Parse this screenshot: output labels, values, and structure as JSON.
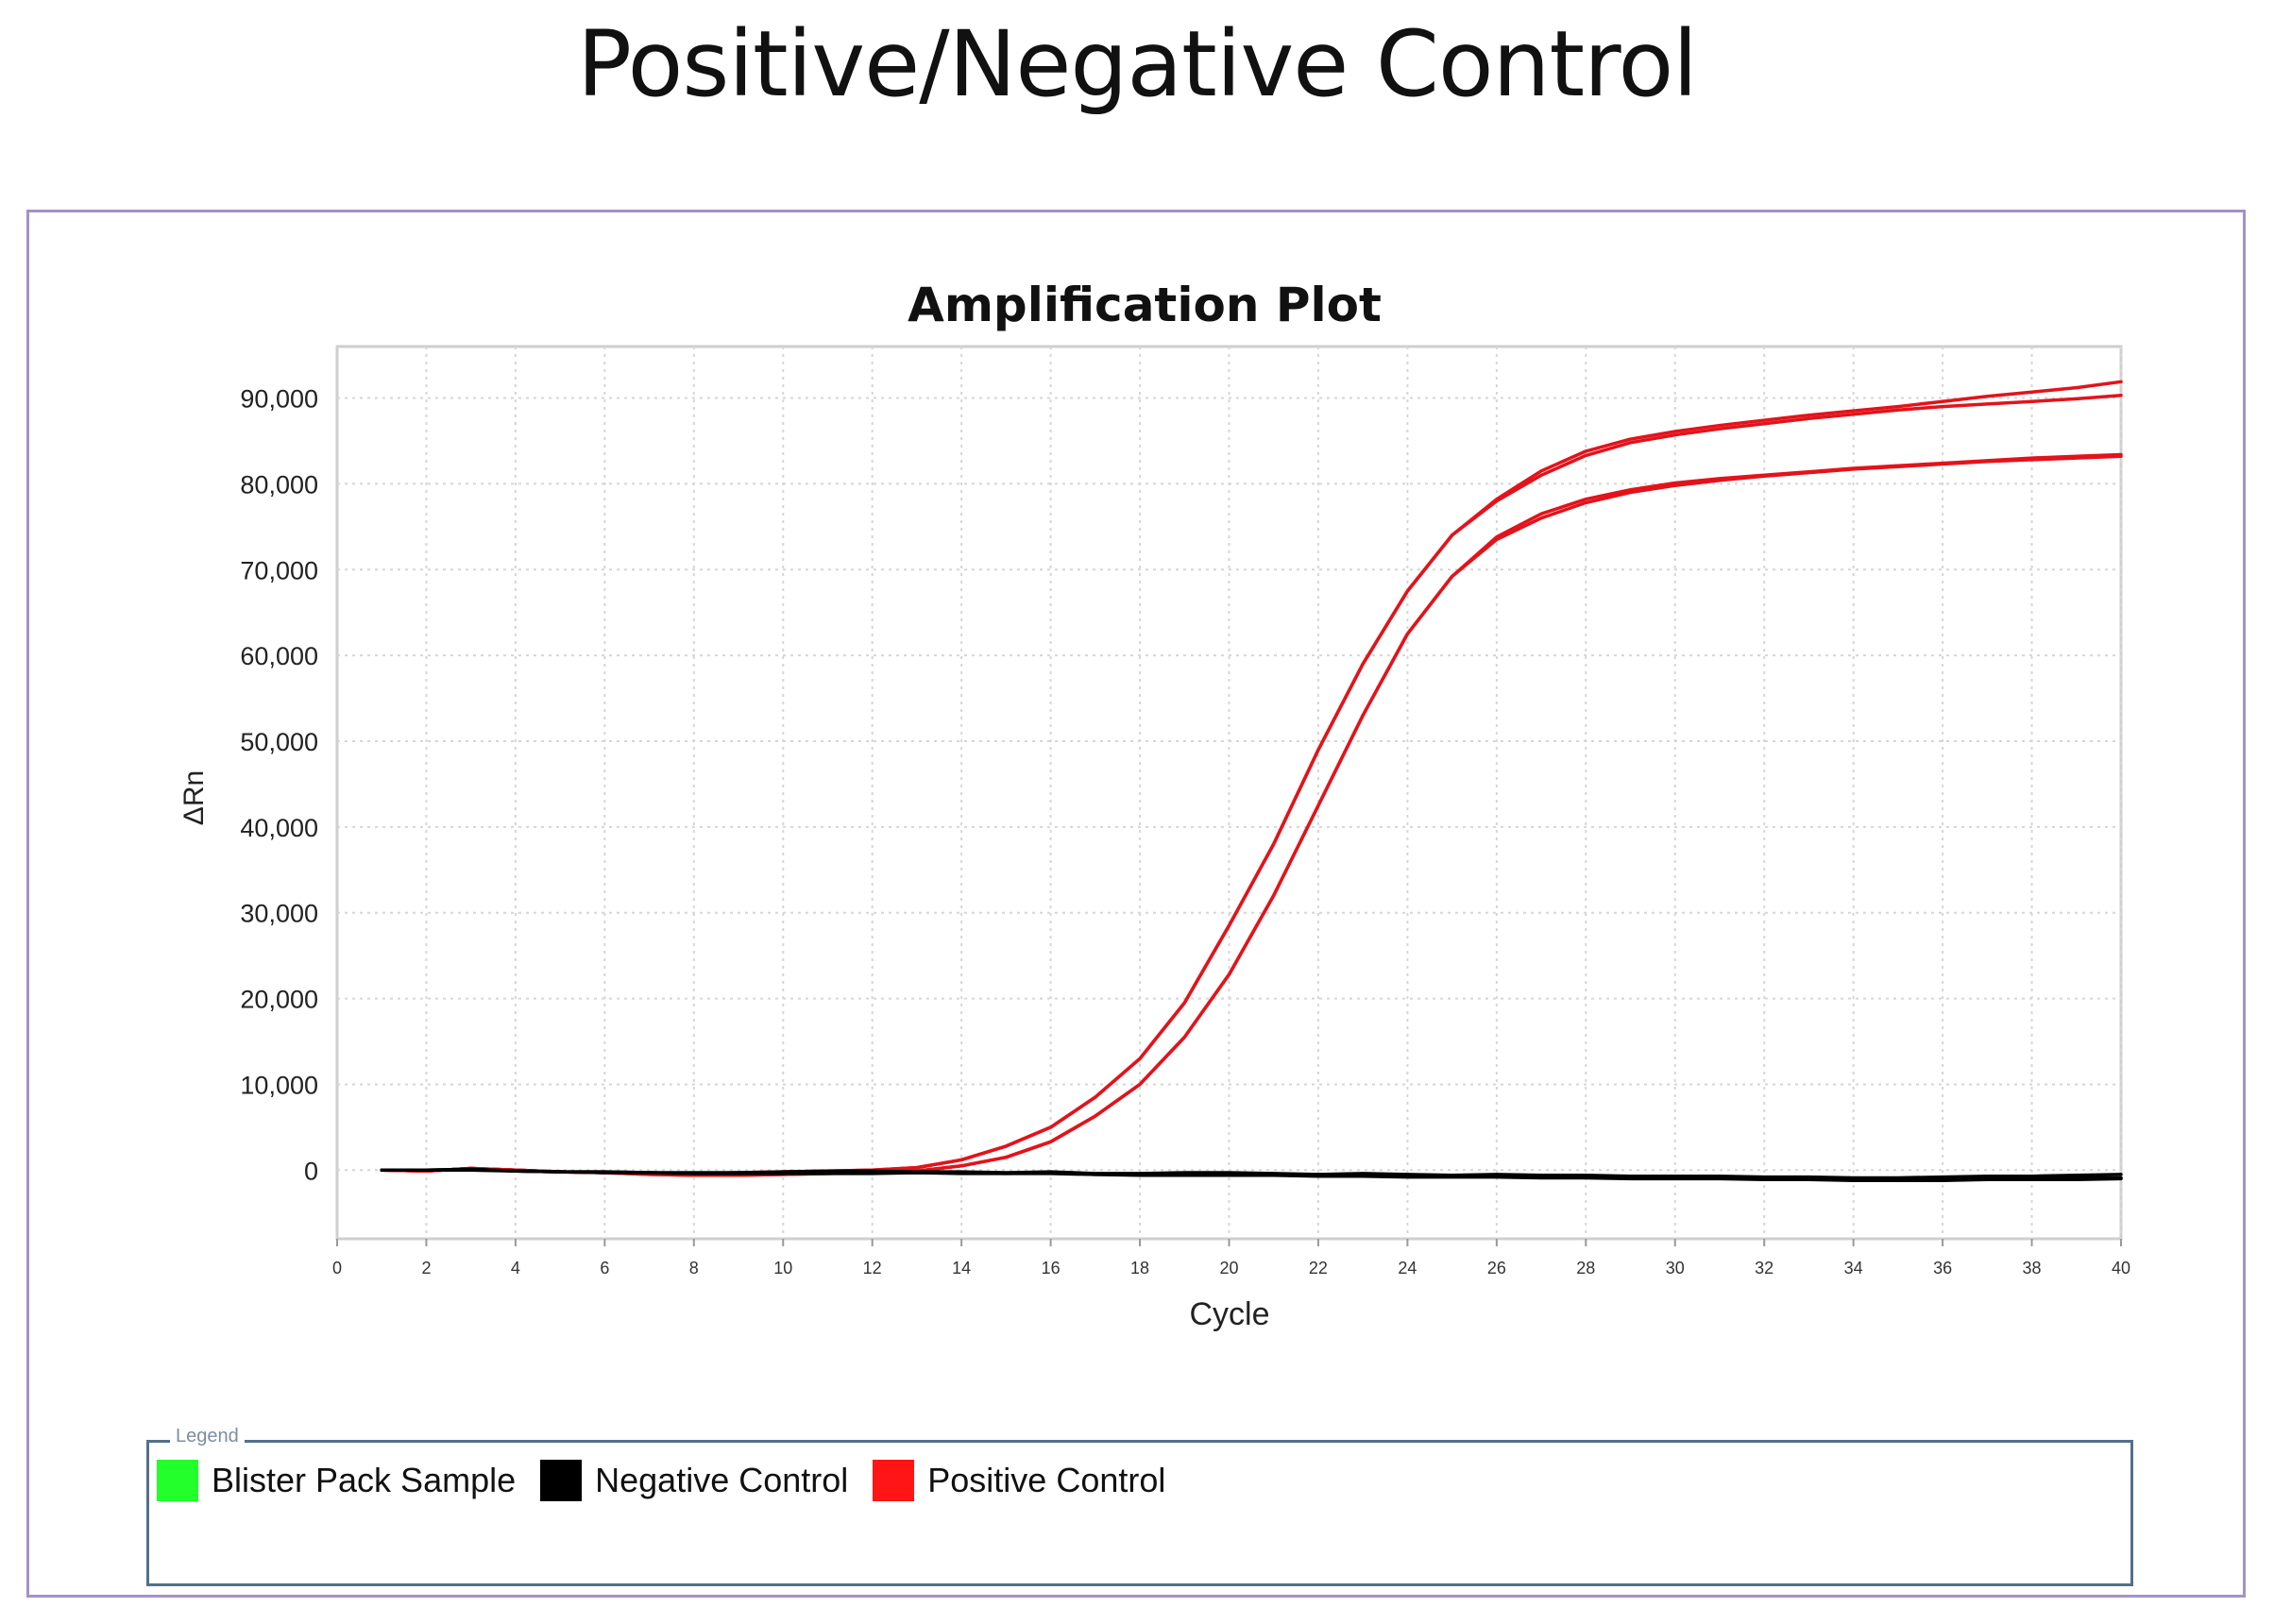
{
  "page_title": "Positive/Negative Control",
  "chart_data": {
    "type": "line",
    "title": "Amplification Plot",
    "xlabel": "Cycle",
    "ylabel": "ΔRn",
    "xlim": [
      0,
      40
    ],
    "ylim": [
      -8000,
      96000
    ],
    "xticks": [
      0,
      2,
      4,
      6,
      8,
      10,
      12,
      14,
      16,
      18,
      20,
      22,
      24,
      26,
      28,
      30,
      32,
      34,
      36,
      38,
      40
    ],
    "yticks": [
      0,
      10000,
      20000,
      30000,
      40000,
      50000,
      60000,
      70000,
      80000,
      90000
    ],
    "ytick_labels": [
      "0",
      "10,000",
      "20,000",
      "30,000",
      "40,000",
      "50,000",
      "60,000",
      "70,000",
      "80,000",
      "90,000"
    ],
    "grid": true,
    "x": [
      1,
      2,
      3,
      4,
      5,
      6,
      7,
      8,
      9,
      10,
      11,
      12,
      13,
      14,
      15,
      16,
      17,
      18,
      19,
      20,
      21,
      22,
      23,
      24,
      25,
      26,
      27,
      28,
      29,
      30,
      31,
      32,
      33,
      34,
      35,
      36,
      37,
      38,
      39,
      40
    ],
    "series": [
      {
        "group": "Positive Control",
        "color": "#e3131b",
        "values": [
          0,
          -100,
          200,
          0,
          -200,
          -300,
          -400,
          -400,
          -300,
          -200,
          -100,
          0,
          300,
          1200,
          2800,
          5000,
          8500,
          13000,
          19500,
          28500,
          38000,
          49000,
          59000,
          67500,
          74000,
          78200,
          81500,
          83800,
          85200,
          86100,
          86800,
          87400,
          88000,
          88500,
          89000,
          89600,
          90200,
          90700,
          91200,
          91900
        ]
      },
      {
        "group": "Positive Control",
        "color": "#e3131b",
        "values": [
          0,
          -100,
          200,
          0,
          -200,
          -300,
          -400,
          -400,
          -300,
          -200,
          -100,
          0,
          300,
          1200,
          2800,
          5000,
          8500,
          13000,
          19500,
          28500,
          38000,
          49000,
          59000,
          67500,
          74000,
          78000,
          81000,
          83300,
          84800,
          85700,
          86400,
          87000,
          87600,
          88100,
          88600,
          89000,
          89300,
          89600,
          89900,
          90300
        ]
      },
      {
        "group": "Positive Control",
        "color": "#e3131b",
        "values": [
          0,
          -100,
          200,
          0,
          -200,
          -300,
          -500,
          -600,
          -600,
          -500,
          -400,
          -300,
          -100,
          500,
          1500,
          3300,
          6300,
          10000,
          15500,
          22800,
          32000,
          42500,
          53000,
          62500,
          69200,
          73800,
          76500,
          78200,
          79300,
          80100,
          80600,
          81000,
          81400,
          81800,
          82100,
          82400,
          82700,
          83000,
          83200,
          83400
        ]
      },
      {
        "group": "Positive Control",
        "color": "#e3131b",
        "values": [
          0,
          -100,
          200,
          0,
          -200,
          -300,
          -500,
          -600,
          -600,
          -500,
          -400,
          -300,
          -100,
          500,
          1500,
          3300,
          6300,
          10000,
          15500,
          22800,
          32000,
          42500,
          53000,
          62500,
          69200,
          73500,
          76000,
          77800,
          79000,
          79800,
          80400,
          80900,
          81300,
          81700,
          82000,
          82300,
          82600,
          82800,
          83000,
          83200
        ]
      },
      {
        "group": "Negative Control",
        "color": "#000000",
        "values": [
          0,
          0,
          100,
          -100,
          -200,
          -200,
          -300,
          -300,
          -300,
          -200,
          -100,
          -100,
          -200,
          -200,
          -300,
          -200,
          -400,
          -400,
          -300,
          -300,
          -400,
          -500,
          -400,
          -500,
          -600,
          -500,
          -600,
          -600,
          -700,
          -700,
          -700,
          -800,
          -800,
          -900,
          -900,
          -800,
          -700,
          -700,
          -600,
          -500
        ]
      },
      {
        "group": "Negative Control",
        "color": "#000000",
        "values": [
          0,
          0,
          100,
          -100,
          -200,
          -200,
          -300,
          -400,
          -400,
          -300,
          -300,
          -300,
          -300,
          -300,
          -400,
          -300,
          -500,
          -500,
          -500,
          -500,
          -600,
          -600,
          -600,
          -700,
          -700,
          -700,
          -700,
          -800,
          -900,
          -900,
          -900,
          -1000,
          -1000,
          -1100,
          -1100,
          -1000,
          -1000,
          -900,
          -900,
          -900
        ]
      },
      {
        "group": "Negative Control",
        "color": "#000000",
        "values": [
          0,
          0,
          0,
          -100,
          -200,
          -300,
          -300,
          -400,
          -400,
          -400,
          -400,
          -400,
          -300,
          -400,
          -400,
          -400,
          -500,
          -600,
          -600,
          -600,
          -600,
          -700,
          -700,
          -800,
          -800,
          -800,
          -900,
          -900,
          -1000,
          -1000,
          -1000,
          -1100,
          -1100,
          -1200,
          -1200,
          -1200,
          -1100,
          -1100,
          -1100,
          -1000
        ]
      }
    ]
  },
  "legend": {
    "caption": "Legend",
    "items": [
      {
        "label": "Blister Pack Sample",
        "color": "#22ff2a"
      },
      {
        "label": "Negative Control",
        "color": "#000000"
      },
      {
        "label": "Positive Control",
        "color": "#ff1515"
      }
    ]
  }
}
